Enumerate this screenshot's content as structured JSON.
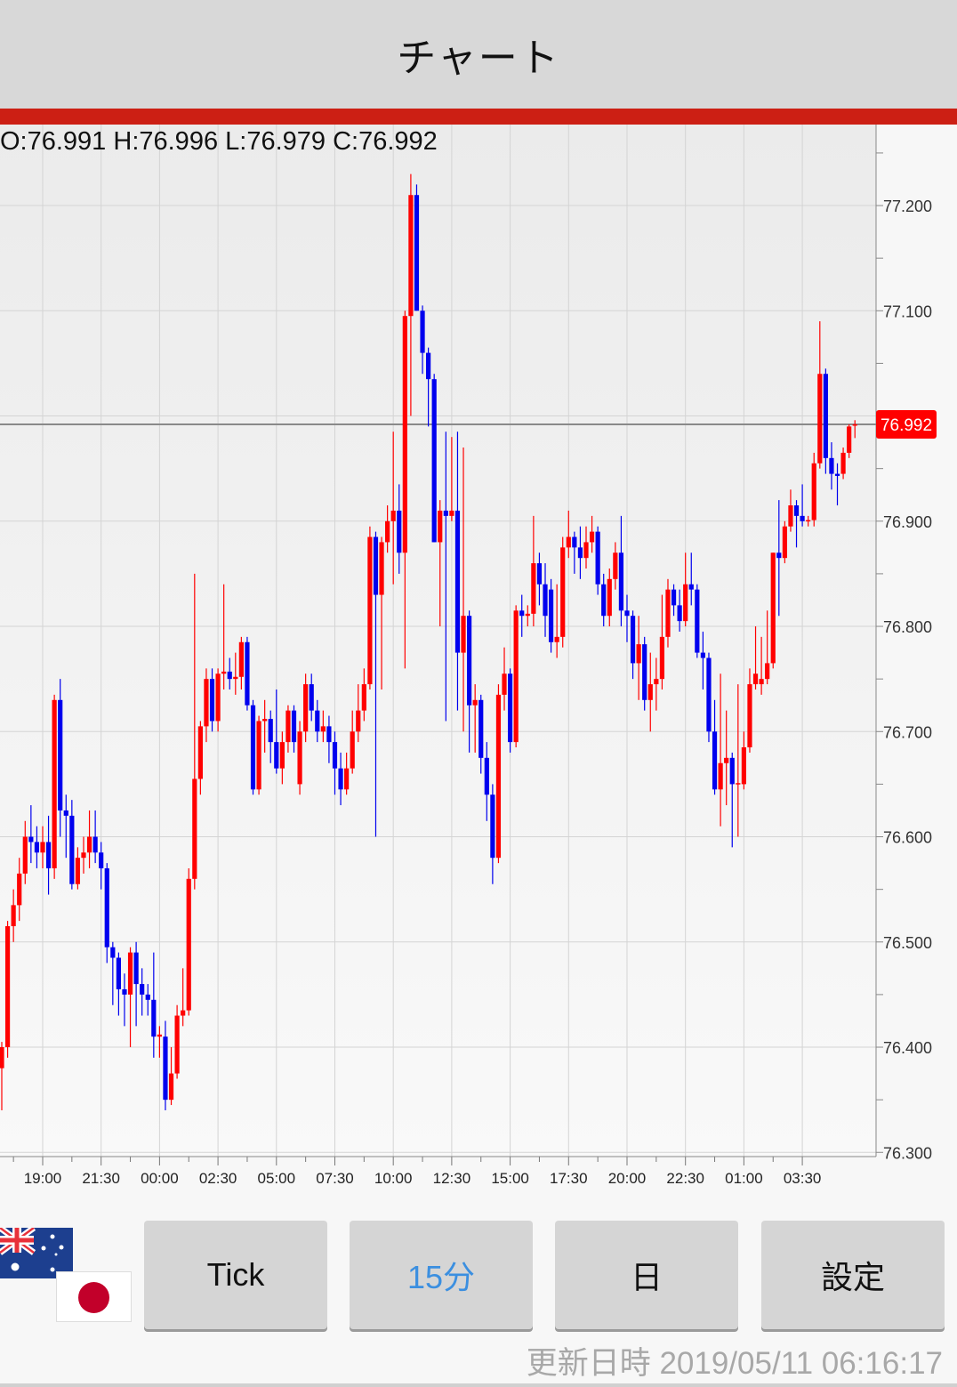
{
  "header": {
    "title": "チャート"
  },
  "ohlc_readout": "O:76.991 H:76.996 L:76.979 C:76.992",
  "colors": {
    "up": "#ff0000",
    "down": "#0000ee",
    "accent_bar": "#cc1f14",
    "price_tag": "#ff0000",
    "active_button": "#3b8fe0"
  },
  "pair_flags": [
    "australia-flag",
    "japan-flag"
  ],
  "buttons": [
    {
      "label": "Tick",
      "active": false
    },
    {
      "label": "15分",
      "active": true
    },
    {
      "label": "日",
      "active": false
    },
    {
      "label": "設定",
      "active": false
    }
  ],
  "footer": {
    "updated": "更新日時 2019/05/11 06:16:17"
  },
  "chart_data": {
    "type": "candlestick",
    "interval": "15分",
    "ylim": [
      76.296,
      77.277
    ],
    "y_ticks": [
      "76.300",
      "76.400",
      "76.500",
      "76.600",
      "76.700",
      "76.800",
      "76.900",
      "77.000",
      "77.100",
      "77.200"
    ],
    "y_tick_labels_shown": [
      "76.300",
      "76.400",
      "76.500",
      "76.600",
      "76.700",
      "76.800",
      "76.900",
      "77.100",
      "77.200"
    ],
    "x_ticks": [
      "19:00",
      "21:30",
      "00:00",
      "02:30",
      "05:00",
      "07:30",
      "10:00",
      "12:30",
      "15:00",
      "17:30",
      "20:00",
      "22:30",
      "01:00",
      "03:30"
    ],
    "grid": true,
    "current_price": "76.992",
    "candles": [
      [
        "17:15",
        76.38,
        76.405,
        76.34,
        76.4
      ],
      [
        "17:30",
        76.4,
        76.52,
        76.39,
        76.515
      ],
      [
        "17:45",
        76.515,
        76.55,
        76.5,
        76.535
      ],
      [
        "18:00",
        76.535,
        76.58,
        76.52,
        76.565
      ],
      [
        "18:15",
        76.565,
        76.615,
        76.555,
        76.6
      ],
      [
        "18:30",
        76.6,
        76.63,
        76.575,
        76.595
      ],
      [
        "18:45",
        76.595,
        76.61,
        76.57,
        76.585
      ],
      [
        "19:00",
        76.585,
        76.61,
        76.57,
        76.595
      ],
      [
        "19:15",
        76.595,
        76.62,
        76.545,
        76.57
      ],
      [
        "19:30",
        76.57,
        76.735,
        76.56,
        76.73
      ],
      [
        "19:45",
        76.73,
        76.75,
        76.6,
        76.625
      ],
      [
        "20:00",
        76.625,
        76.64,
        76.58,
        76.62
      ],
      [
        "20:15",
        76.62,
        76.635,
        76.55,
        76.555
      ],
      [
        "20:30",
        76.555,
        76.59,
        76.55,
        76.58
      ],
      [
        "20:45",
        76.58,
        76.6,
        76.565,
        76.585
      ],
      [
        "21:00",
        76.585,
        76.625,
        76.57,
        76.6
      ],
      [
        "21:15",
        76.6,
        76.625,
        76.575,
        76.585
      ],
      [
        "21:30",
        76.585,
        76.595,
        76.55,
        76.57
      ],
      [
        "21:45",
        76.57,
        76.575,
        76.48,
        76.495
      ],
      [
        "22:00",
        76.495,
        76.5,
        76.44,
        76.485
      ],
      [
        "22:15",
        76.485,
        76.49,
        76.43,
        76.455
      ],
      [
        "22:30",
        76.455,
        76.47,
        76.42,
        76.45
      ],
      [
        "22:45",
        76.45,
        76.495,
        76.4,
        76.49
      ],
      [
        "23:00",
        76.49,
        76.5,
        76.42,
        76.46
      ],
      [
        "23:15",
        76.46,
        76.475,
        76.43,
        76.45
      ],
      [
        "23:30",
        76.45,
        76.46,
        76.43,
        76.445
      ],
      [
        "23:45",
        76.445,
        76.49,
        76.39,
        76.41
      ],
      [
        "00:00",
        76.41,
        76.42,
        76.39,
        76.412
      ],
      [
        "00:15",
        76.41,
        76.425,
        76.34,
        76.35
      ],
      [
        "00:30",
        76.35,
        76.4,
        76.345,
        76.375
      ],
      [
        "00:45",
        76.375,
        76.44,
        76.37,
        76.43
      ],
      [
        "01:00",
        76.43,
        76.475,
        76.42,
        76.435
      ],
      [
        "01:15",
        76.435,
        76.57,
        76.43,
        76.56
      ],
      [
        "01:30",
        76.56,
        76.85,
        76.55,
        76.655
      ],
      [
        "01:45",
        76.655,
        76.71,
        76.64,
        76.705
      ],
      [
        "02:00",
        76.705,
        76.76,
        76.69,
        76.75
      ],
      [
        "02:15",
        76.75,
        76.76,
        76.7,
        76.71
      ],
      [
        "02:30",
        76.71,
        76.76,
        76.7,
        76.755
      ],
      [
        "02:45",
        76.755,
        76.84,
        76.74,
        76.757
      ],
      [
        "03:00",
        76.757,
        76.77,
        76.74,
        76.75
      ],
      [
        "03:15",
        76.75,
        76.775,
        76.735,
        76.752
      ],
      [
        "03:30",
        76.752,
        76.79,
        76.74,
        76.785
      ],
      [
        "03:45",
        76.785,
        76.79,
        76.72,
        76.725
      ],
      [
        "04:00",
        76.725,
        76.73,
        76.64,
        76.645
      ],
      [
        "04:15",
        76.645,
        76.715,
        76.64,
        76.71
      ],
      [
        "04:30",
        76.71,
        76.73,
        76.68,
        76.712
      ],
      [
        "04:45",
        76.712,
        76.72,
        76.67,
        76.69
      ],
      [
        "05:00",
        76.69,
        76.74,
        76.66,
        76.665
      ],
      [
        "05:15",
        76.665,
        76.7,
        76.65,
        76.69
      ],
      [
        "05:30",
        76.69,
        76.725,
        76.68,
        76.72
      ],
      [
        "05:45",
        76.72,
        76.725,
        76.68,
        76.69
      ],
      [
        "06:00",
        76.65,
        76.71,
        76.64,
        76.7
      ],
      [
        "06:15",
        76.7,
        76.755,
        76.69,
        76.745
      ],
      [
        "06:30",
        76.745,
        76.755,
        76.71,
        76.72
      ],
      [
        "06:45",
        76.72,
        76.73,
        76.69,
        76.7
      ],
      [
        "07:00",
        76.7,
        76.72,
        76.69,
        76.705
      ],
      [
        "07:15",
        76.705,
        76.715,
        76.67,
        76.69
      ],
      [
        "07:30",
        76.69,
        76.7,
        76.64,
        76.665
      ],
      [
        "07:45",
        76.665,
        76.68,
        76.63,
        76.645
      ],
      [
        "08:00",
        76.645,
        76.68,
        76.64,
        76.665
      ],
      [
        "08:15",
        76.665,
        76.72,
        76.66,
        76.7
      ],
      [
        "08:30",
        76.7,
        76.745,
        76.69,
        76.72
      ],
      [
        "08:45",
        76.72,
        76.76,
        76.71,
        76.745
      ],
      [
        "09:00",
        76.745,
        76.895,
        76.74,
        76.885
      ],
      [
        "09:15",
        76.885,
        76.89,
        76.6,
        76.83
      ],
      [
        "09:30",
        76.83,
        76.885,
        76.74,
        76.88
      ],
      [
        "09:45",
        76.88,
        76.915,
        76.87,
        76.9
      ],
      [
        "10:00",
        76.9,
        76.985,
        76.84,
        76.91
      ],
      [
        "10:15",
        76.91,
        76.935,
        76.85,
        76.87
      ],
      [
        "10:30",
        76.87,
        77.1,
        76.76,
        77.095
      ],
      [
        "10:45",
        77.095,
        77.23,
        77.0,
        77.21
      ],
      [
        "11:00",
        77.21,
        77.22,
        77.1,
        77.1
      ],
      [
        "11:15",
        77.1,
        77.105,
        77.04,
        77.06
      ],
      [
        "11:30",
        77.06,
        77.065,
        76.99,
        77.035
      ],
      [
        "11:45",
        77.035,
        77.04,
        76.88,
        76.88
      ],
      [
        "12:00",
        76.88,
        76.92,
        76.8,
        76.91
      ],
      [
        "12:15",
        76.91,
        76.985,
        76.71,
        76.905
      ],
      [
        "12:30",
        76.905,
        76.98,
        76.9,
        76.91
      ],
      [
        "12:45",
        76.91,
        76.985,
        76.72,
        76.775
      ],
      [
        "13:00",
        76.775,
        76.97,
        76.7,
        76.81
      ],
      [
        "13:15",
        76.81,
        76.815,
        76.68,
        76.725
      ],
      [
        "13:30",
        76.725,
        76.745,
        76.68,
        76.73
      ],
      [
        "13:45",
        76.73,
        76.735,
        76.66,
        76.675
      ],
      [
        "14:00",
        76.675,
        76.69,
        76.615,
        76.64
      ],
      [
        "14:15",
        76.64,
        76.65,
        76.555,
        76.58
      ],
      [
        "14:30",
        76.58,
        76.745,
        76.575,
        76.735
      ],
      [
        "14:45",
        76.735,
        76.78,
        76.72,
        76.755
      ],
      [
        "15:00",
        76.755,
        76.76,
        76.68,
        76.69
      ],
      [
        "15:15",
        76.69,
        76.82,
        76.685,
        76.815
      ],
      [
        "15:30",
        76.815,
        76.83,
        76.79,
        76.81
      ],
      [
        "15:45",
        76.81,
        76.82,
        76.8,
        76.812
      ],
      [
        "16:00",
        76.812,
        76.905,
        76.8,
        76.86
      ],
      [
        "16:15",
        76.86,
        76.87,
        76.82,
        76.84
      ],
      [
        "16:30",
        76.84,
        76.86,
        76.79,
        76.81
      ],
      [
        "16:45",
        76.835,
        76.845,
        76.775,
        76.785
      ],
      [
        "17:00",
        76.785,
        76.84,
        76.77,
        76.79
      ],
      [
        "17:15",
        76.79,
        76.885,
        76.78,
        76.875
      ],
      [
        "17:30",
        76.875,
        76.91,
        76.865,
        76.885
      ],
      [
        "17:45",
        76.885,
        76.89,
        76.85,
        76.875
      ],
      [
        "18:00",
        76.875,
        76.895,
        76.845,
        76.865
      ],
      [
        "18:15",
        76.865,
        76.895,
        76.855,
        76.88
      ],
      [
        "18:30",
        76.88,
        76.905,
        76.87,
        76.89
      ],
      [
        "18:45",
        76.89,
        76.895,
        76.83,
        76.84
      ],
      [
        "19:00",
        76.84,
        76.85,
        76.8,
        76.81
      ],
      [
        "19:15",
        76.81,
        76.855,
        76.8,
        76.845
      ],
      [
        "19:30",
        76.845,
        76.88,
        76.835,
        76.87
      ],
      [
        "19:45",
        76.87,
        76.905,
        76.8,
        76.815
      ],
      [
        "20:00",
        76.815,
        76.83,
        76.785,
        76.81
      ],
      [
        "20:15",
        76.81,
        76.815,
        76.75,
        76.765
      ],
      [
        "20:30",
        76.765,
        76.81,
        76.73,
        76.783
      ],
      [
        "20:45",
        76.783,
        76.79,
        76.72,
        76.73
      ],
      [
        "21:00",
        76.73,
        76.775,
        76.7,
        76.745
      ],
      [
        "21:15",
        76.745,
        76.77,
        76.72,
        76.75
      ],
      [
        "21:30",
        76.75,
        76.83,
        76.74,
        76.79
      ],
      [
        "21:45",
        76.79,
        76.845,
        76.78,
        76.835
      ],
      [
        "22:00",
        76.835,
        76.84,
        76.81,
        76.82
      ],
      [
        "22:15",
        76.82,
        76.835,
        76.795,
        76.805
      ],
      [
        "22:30",
        76.805,
        76.87,
        76.8,
        76.84
      ],
      [
        "22:45",
        76.84,
        76.87,
        76.82,
        76.835
      ],
      [
        "23:00",
        76.835,
        76.84,
        76.77,
        76.775
      ],
      [
        "23:15",
        76.775,
        76.795,
        76.74,
        76.77
      ],
      [
        "23:30",
        76.77,
        76.775,
        76.69,
        76.7
      ],
      [
        "23:45",
        76.7,
        76.73,
        76.64,
        76.645
      ],
      [
        "00:00",
        76.645,
        76.755,
        76.61,
        76.67
      ],
      [
        "00:15",
        76.67,
        76.72,
        76.63,
        76.675
      ],
      [
        "00:30",
        76.675,
        76.68,
        76.59,
        76.65
      ],
      [
        "00:45",
        76.65,
        76.745,
        76.6,
        76.651
      ],
      [
        "01:00",
        76.65,
        76.7,
        76.645,
        76.685
      ],
      [
        "01:15",
        76.685,
        76.76,
        76.68,
        76.745
      ],
      [
        "01:30",
        76.745,
        76.8,
        76.74,
        76.755
      ],
      [
        "01:45",
        76.745,
        76.79,
        76.735,
        76.75
      ],
      [
        "02:00",
        76.75,
        76.815,
        76.745,
        76.765
      ],
      [
        "02:15",
        76.765,
        76.87,
        76.76,
        76.87
      ],
      [
        "02:30",
        76.87,
        76.92,
        76.81,
        76.865
      ],
      [
        "02:45",
        76.865,
        76.9,
        76.86,
        76.895
      ],
      [
        "03:00",
        76.895,
        76.93,
        76.89,
        76.915
      ],
      [
        "03:15",
        76.915,
        76.92,
        76.875,
        76.905
      ],
      [
        "03:30",
        76.905,
        76.935,
        76.895,
        76.9
      ],
      [
        "03:45",
        76.9,
        76.905,
        76.895,
        76.901
      ],
      [
        "04:00",
        76.901,
        76.965,
        76.895,
        76.955
      ],
      [
        "04:15",
        76.955,
        77.09,
        76.95,
        77.04
      ],
      [
        "04:30",
        77.04,
        77.045,
        76.945,
        76.96
      ],
      [
        "04:45",
        76.96,
        76.975,
        76.93,
        76.945
      ],
      [
        "05:00",
        76.945,
        76.955,
        76.915,
        76.943
      ],
      [
        "05:15",
        76.945,
        76.97,
        76.94,
        76.965
      ],
      [
        "05:30",
        76.965,
        76.992,
        76.96,
        76.99
      ],
      [
        "05:45",
        76.991,
        76.996,
        76.979,
        76.992
      ]
    ]
  }
}
